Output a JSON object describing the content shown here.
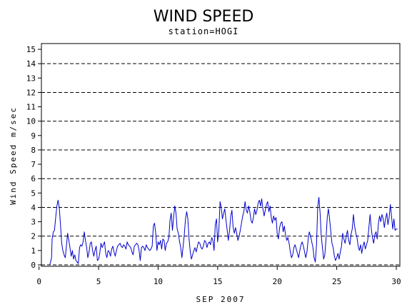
{
  "chart_data": {
    "type": "line",
    "title": "WIND SPEED",
    "subtitle": "station=HOGI",
    "xlabel": "SEP 2007",
    "ylabel": "Wind Speed m/sec",
    "xlim": [
      0.2,
      30.3
    ],
    "ylim": [
      -0.1,
      15.4
    ],
    "x_ticks": [
      0,
      5,
      10,
      15,
      20,
      25,
      30
    ],
    "y_ticks": [
      0,
      1,
      2,
      3,
      4,
      5,
      6,
      7,
      8,
      9,
      10,
      11,
      12,
      13,
      14,
      15
    ],
    "reference_lines": [
      0,
      2,
      4,
      6,
      8,
      10,
      12,
      14
    ],
    "series": [
      {
        "color": "#0000cc",
        "points": [
          [
            0.9,
            0
          ],
          [
            1.0,
            0.3
          ],
          [
            1.05,
            0.5
          ],
          [
            1.1,
            1.8
          ],
          [
            1.2,
            2.3
          ],
          [
            1.3,
            2.4
          ],
          [
            1.4,
            3.3
          ],
          [
            1.5,
            4.1
          ],
          [
            1.6,
            4.5
          ],
          [
            1.7,
            4.0
          ],
          [
            1.8,
            2.8
          ],
          [
            1.9,
            1.5
          ],
          [
            2.0,
            1.0
          ],
          [
            2.1,
            0.7
          ],
          [
            2.2,
            0.5
          ],
          [
            2.3,
            1.3
          ],
          [
            2.4,
            2.2
          ],
          [
            2.5,
            1.7
          ],
          [
            2.6,
            1.2
          ],
          [
            2.7,
            0.6
          ],
          [
            2.8,
            1.0
          ],
          [
            2.9,
            0.4
          ],
          [
            3.0,
            0.7
          ],
          [
            3.1,
            0.3
          ],
          [
            3.2,
            0.2
          ],
          [
            3.3,
            0.1
          ],
          [
            3.4,
            1.2
          ],
          [
            3.5,
            1.4
          ],
          [
            3.6,
            1.3
          ],
          [
            3.7,
            1.6
          ],
          [
            3.8,
            2.3
          ],
          [
            3.9,
            1.7
          ],
          [
            4.0,
            1.2
          ],
          [
            4.1,
            0.5
          ],
          [
            4.2,
            0.9
          ],
          [
            4.3,
            1.5
          ],
          [
            4.4,
            1.6
          ],
          [
            4.5,
            1.0
          ],
          [
            4.6,
            0.6
          ],
          [
            4.7,
            1.0
          ],
          [
            4.8,
            1.3
          ],
          [
            4.9,
            0.3
          ],
          [
            5.0,
            0.4
          ],
          [
            5.1,
            0.8
          ],
          [
            5.2,
            1.5
          ],
          [
            5.3,
            1.2
          ],
          [
            5.4,
            1.4
          ],
          [
            5.5,
            1.6
          ],
          [
            5.6,
            0.8
          ],
          [
            5.7,
            0.5
          ],
          [
            5.8,
            1.0
          ],
          [
            5.9,
            0.9
          ],
          [
            6.0,
            0.6
          ],
          [
            6.1,
            1.1
          ],
          [
            6.2,
            1.3
          ],
          [
            6.3,
            0.9
          ],
          [
            6.4,
            0.6
          ],
          [
            6.5,
            1.0
          ],
          [
            6.6,
            1.3
          ],
          [
            6.7,
            1.4
          ],
          [
            6.8,
            1.5
          ],
          [
            6.9,
            1.3
          ],
          [
            7.0,
            1.2
          ],
          [
            7.1,
            1.4
          ],
          [
            7.2,
            1.3
          ],
          [
            7.3,
            1.1
          ],
          [
            7.4,
            1.6
          ],
          [
            7.5,
            1.4
          ],
          [
            7.6,
            1.3
          ],
          [
            7.7,
            1.2
          ],
          [
            7.8,
            0.9
          ],
          [
            7.9,
            0.7
          ],
          [
            8.0,
            1.3
          ],
          [
            8.1,
            1.4
          ],
          [
            8.2,
            1.5
          ],
          [
            8.3,
            1.4
          ],
          [
            8.4,
            1.0
          ],
          [
            8.5,
            0.3
          ],
          [
            8.6,
            1.2
          ],
          [
            8.7,
            1.3
          ],
          [
            8.8,
            1.2
          ],
          [
            8.9,
            1.0
          ],
          [
            9.0,
            1.4
          ],
          [
            9.1,
            1.2
          ],
          [
            9.2,
            1.1
          ],
          [
            9.3,
            1.0
          ],
          [
            9.4,
            1.1
          ],
          [
            9.5,
            1.3
          ],
          [
            9.6,
            2.7
          ],
          [
            9.7,
            2.9
          ],
          [
            9.8,
            2.2
          ],
          [
            9.9,
            1.0
          ],
          [
            10.0,
            1.6
          ],
          [
            10.1,
            1.4
          ],
          [
            10.2,
            1.7
          ],
          [
            10.3,
            1.1
          ],
          [
            10.4,
            1.8
          ],
          [
            10.5,
            1.7
          ],
          [
            10.6,
            1.0
          ],
          [
            10.7,
            1.5
          ],
          [
            10.8,
            1.6
          ],
          [
            10.9,
            1.9
          ],
          [
            11.0,
            3.1
          ],
          [
            11.1,
            3.6
          ],
          [
            11.2,
            2.4
          ],
          [
            11.3,
            3.3
          ],
          [
            11.4,
            4.1
          ],
          [
            11.5,
            3.6
          ],
          [
            11.6,
            2.5
          ],
          [
            11.7,
            2.2
          ],
          [
            11.8,
            1.6
          ],
          [
            11.9,
            1.2
          ],
          [
            12.0,
            0.5
          ],
          [
            12.1,
            1.3
          ],
          [
            12.2,
            2.1
          ],
          [
            12.3,
            3.2
          ],
          [
            12.4,
            3.7
          ],
          [
            12.5,
            3.2
          ],
          [
            12.6,
            1.8
          ],
          [
            12.7,
            0.9
          ],
          [
            12.8,
            0.4
          ],
          [
            12.9,
            0.7
          ],
          [
            13.0,
            1.0
          ],
          [
            13.1,
            1.2
          ],
          [
            13.2,
            0.9
          ],
          [
            13.3,
            1.3
          ],
          [
            13.4,
            1.6
          ],
          [
            13.5,
            1.5
          ],
          [
            13.6,
            1.2
          ],
          [
            13.7,
            1.1
          ],
          [
            13.8,
            1.3
          ],
          [
            13.9,
            1.7
          ],
          [
            14.0,
            1.6
          ],
          [
            14.1,
            1.2
          ],
          [
            14.2,
            1.5
          ],
          [
            14.3,
            1.6
          ],
          [
            14.4,
            1.4
          ],
          [
            14.5,
            1.9
          ],
          [
            14.6,
            1.7
          ],
          [
            14.7,
            1.0
          ],
          [
            14.8,
            2.8
          ],
          [
            14.9,
            3.2
          ],
          [
            15.0,
            1.6
          ],
          [
            15.1,
            2.4
          ],
          [
            15.2,
            4.4
          ],
          [
            15.3,
            4.0
          ],
          [
            15.4,
            3.2
          ],
          [
            15.5,
            3.6
          ],
          [
            15.6,
            3.9
          ],
          [
            15.7,
            3.1
          ],
          [
            15.8,
            2.4
          ],
          [
            15.9,
            1.7
          ],
          [
            16.0,
            2.4
          ],
          [
            16.1,
            3.4
          ],
          [
            16.2,
            3.8
          ],
          [
            16.3,
            2.6
          ],
          [
            16.4,
            2.2
          ],
          [
            16.5,
            2.6
          ],
          [
            16.6,
            2.2
          ],
          [
            16.7,
            1.7
          ],
          [
            16.8,
            2.0
          ],
          [
            16.9,
            2.4
          ],
          [
            17.0,
            2.9
          ],
          [
            17.1,
            3.4
          ],
          [
            17.2,
            3.7
          ],
          [
            17.3,
            4.4
          ],
          [
            17.4,
            3.8
          ],
          [
            17.5,
            3.6
          ],
          [
            17.6,
            4.1
          ],
          [
            17.7,
            3.7
          ],
          [
            17.8,
            3.1
          ],
          [
            17.9,
            2.9
          ],
          [
            18.0,
            3.3
          ],
          [
            18.1,
            3.9
          ],
          [
            18.2,
            3.5
          ],
          [
            18.3,
            3.8
          ],
          [
            18.4,
            4.3
          ],
          [
            18.5,
            4.5
          ],
          [
            18.6,
            4.1
          ],
          [
            18.7,
            4.6
          ],
          [
            18.8,
            3.9
          ],
          [
            18.9,
            3.4
          ],
          [
            19.0,
            3.8
          ],
          [
            19.1,
            4.2
          ],
          [
            19.2,
            4.4
          ],
          [
            19.3,
            3.7
          ],
          [
            19.4,
            4.1
          ],
          [
            19.5,
            3.3
          ],
          [
            19.6,
            2.9
          ],
          [
            19.7,
            3.4
          ],
          [
            19.8,
            3.1
          ],
          [
            19.9,
            3.3
          ],
          [
            20.0,
            2.2
          ],
          [
            20.1,
            1.8
          ],
          [
            20.2,
            2.6
          ],
          [
            20.3,
            2.9
          ],
          [
            20.4,
            3.0
          ],
          [
            20.5,
            2.3
          ],
          [
            20.6,
            2.7
          ],
          [
            20.7,
            2.1
          ],
          [
            20.8,
            1.7
          ],
          [
            20.9,
            1.9
          ],
          [
            21.0,
            1.5
          ],
          [
            21.1,
            0.9
          ],
          [
            21.2,
            0.5
          ],
          [
            21.3,
            0.7
          ],
          [
            21.4,
            1.2
          ],
          [
            21.5,
            1.4
          ],
          [
            21.6,
            1.1
          ],
          [
            21.7,
            0.8
          ],
          [
            21.8,
            0.5
          ],
          [
            21.9,
            1.0
          ],
          [
            22.0,
            1.4
          ],
          [
            22.1,
            1.6
          ],
          [
            22.2,
            1.3
          ],
          [
            22.3,
            0.9
          ],
          [
            22.4,
            0.5
          ],
          [
            22.5,
            0.9
          ],
          [
            22.6,
            1.8
          ],
          [
            22.7,
            2.3
          ],
          [
            22.8,
            2.0
          ],
          [
            22.9,
            1.6
          ],
          [
            23.0,
            1.2
          ],
          [
            23.1,
            0.5
          ],
          [
            23.2,
            0.2
          ],
          [
            23.3,
            1.4
          ],
          [
            23.4,
            4.0
          ],
          [
            23.5,
            4.7
          ],
          [
            23.6,
            3.6
          ],
          [
            23.7,
            2.0
          ],
          [
            23.8,
            1.2
          ],
          [
            23.9,
            0.4
          ],
          [
            24.0,
            0.7
          ],
          [
            24.1,
            1.8
          ],
          [
            24.2,
            3.3
          ],
          [
            24.3,
            3.9
          ],
          [
            24.4,
            3.2
          ],
          [
            24.5,
            2.3
          ],
          [
            24.6,
            1.5
          ],
          [
            24.7,
            1.2
          ],
          [
            24.8,
            0.6
          ],
          [
            24.9,
            0.3
          ],
          [
            25.0,
            0.5
          ],
          [
            25.1,
            0.8
          ],
          [
            25.2,
            0.4
          ],
          [
            25.3,
            0.9
          ],
          [
            25.4,
            1.3
          ],
          [
            25.5,
            2.2
          ],
          [
            25.6,
            1.8
          ],
          [
            25.7,
            1.5
          ],
          [
            25.8,
            2.0
          ],
          [
            25.9,
            2.4
          ],
          [
            26.0,
            1.7
          ],
          [
            26.1,
            1.4
          ],
          [
            26.2,
            2.1
          ],
          [
            26.3,
            2.5
          ],
          [
            26.4,
            3.5
          ],
          [
            26.5,
            2.7
          ],
          [
            26.6,
            2.2
          ],
          [
            26.7,
            1.9
          ],
          [
            26.8,
            1.3
          ],
          [
            26.9,
            1.0
          ],
          [
            27.0,
            1.4
          ],
          [
            27.1,
            0.8
          ],
          [
            27.2,
            1.3
          ],
          [
            27.3,
            1.6
          ],
          [
            27.4,
            1.1
          ],
          [
            27.5,
            1.4
          ],
          [
            27.6,
            1.7
          ],
          [
            27.7,
            2.6
          ],
          [
            27.8,
            3.5
          ],
          [
            27.9,
            2.5
          ],
          [
            28.0,
            1.9
          ],
          [
            28.1,
            1.5
          ],
          [
            28.2,
            2.1
          ],
          [
            28.3,
            2.3
          ],
          [
            28.4,
            1.8
          ],
          [
            28.5,
            2.9
          ],
          [
            28.6,
            3.4
          ],
          [
            28.7,
            3.0
          ],
          [
            28.8,
            3.5
          ],
          [
            28.9,
            3.2
          ],
          [
            29.0,
            2.6
          ],
          [
            29.1,
            3.2
          ],
          [
            29.2,
            3.6
          ],
          [
            29.3,
            2.8
          ],
          [
            29.4,
            3.3
          ],
          [
            29.5,
            4.2
          ],
          [
            29.6,
            3.4
          ],
          [
            29.7,
            2.5
          ],
          [
            29.8,
            3.2
          ],
          [
            29.9,
            2.4
          ],
          [
            30.0,
            2.5
          ],
          [
            30.1,
            2.5
          ]
        ]
      }
    ]
  }
}
